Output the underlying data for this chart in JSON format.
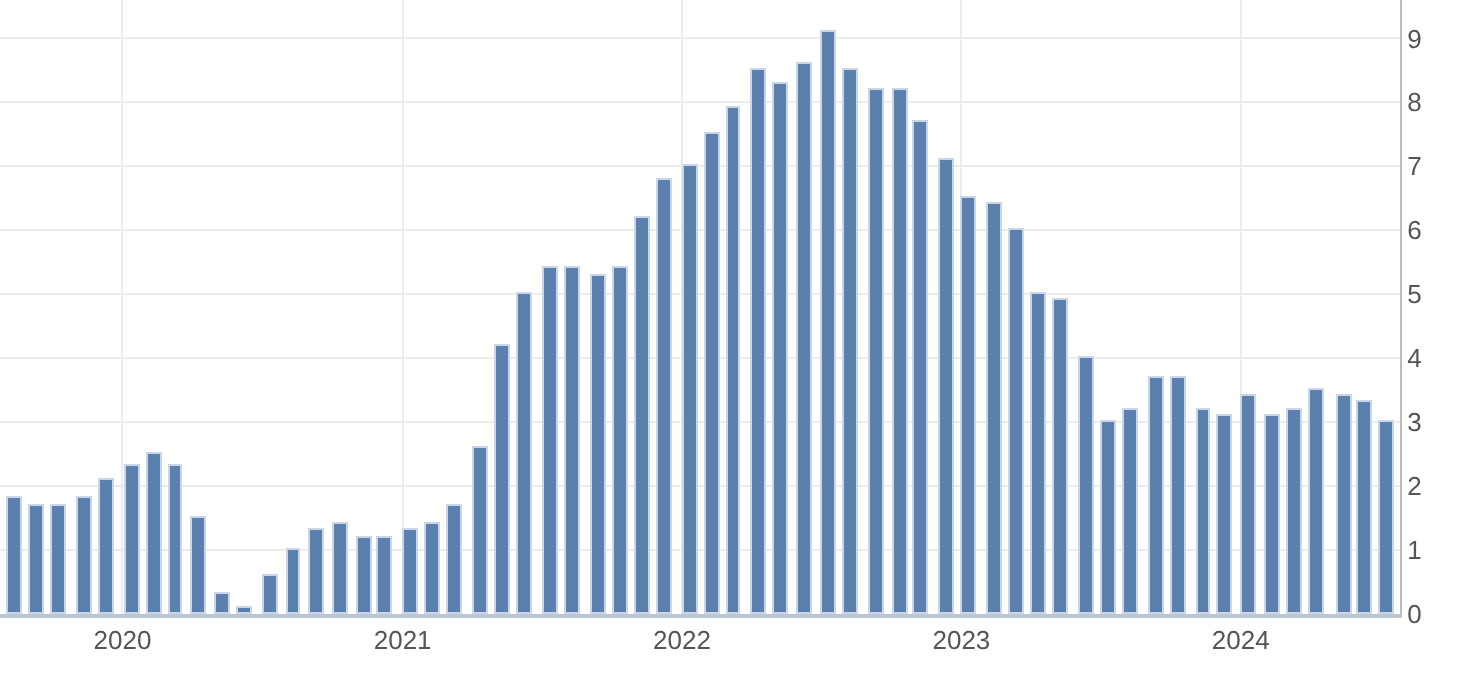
{
  "chart_data": {
    "type": "bar",
    "x": [
      "2019-08-13",
      "2019-09-12",
      "2019-10-10",
      "2019-11-13",
      "2019-12-11",
      "2020-01-14",
      "2020-02-13",
      "2020-03-11",
      "2020-04-10",
      "2020-05-12",
      "2020-06-10",
      "2020-07-14",
      "2020-08-12",
      "2020-09-11",
      "2020-10-13",
      "2020-11-12",
      "2020-12-10",
      "2021-01-13",
      "2021-02-10",
      "2021-03-10",
      "2021-04-13",
      "2021-05-12",
      "2021-06-10",
      "2021-07-13",
      "2021-08-11",
      "2021-09-14",
      "2021-10-13",
      "2021-11-10",
      "2021-12-10",
      "2022-01-12",
      "2022-02-10",
      "2022-03-10",
      "2022-04-12",
      "2022-05-11",
      "2022-06-10",
      "2022-07-13",
      "2022-08-10",
      "2022-09-13",
      "2022-10-13",
      "2022-11-10",
      "2022-12-13",
      "2023-01-12",
      "2023-02-14",
      "2023-03-14",
      "2023-04-12",
      "2023-05-10",
      "2023-06-13",
      "2023-07-12",
      "2023-08-10",
      "2023-09-13",
      "2023-10-12",
      "2023-11-14",
      "2023-12-12",
      "2024-01-11",
      "2024-02-13",
      "2024-03-12",
      "2024-04-10",
      "2024-05-15",
      "2024-06-12",
      "2024-07-11"
    ],
    "values": [
      1.8,
      1.7,
      1.7,
      1.8,
      2.1,
      2.3,
      2.5,
      2.3,
      1.5,
      0.3,
      0.1,
      0.6,
      1.0,
      1.3,
      1.4,
      1.2,
      1.2,
      1.3,
      1.4,
      1.7,
      2.6,
      4.2,
      5.0,
      5.4,
      5.4,
      5.3,
      5.4,
      6.2,
      6.8,
      7.0,
      7.5,
      7.9,
      8.5,
      8.3,
      8.6,
      9.1,
      8.5,
      8.2,
      8.2,
      7.7,
      7.1,
      6.5,
      6.4,
      6.0,
      5.0,
      4.9,
      4.0,
      3.0,
      3.2,
      3.7,
      3.7,
      3.2,
      3.1,
      3.4,
      3.1,
      3.2,
      3.5,
      3.4,
      3.3,
      3.0
    ],
    "color": "#5b80ad",
    "xlim": [
      "2019-07-25",
      "2024-07-27"
    ],
    "xticks": [
      {
        "value": "2020-01-01",
        "label": "2020"
      },
      {
        "value": "2021-01-01",
        "label": "2021"
      },
      {
        "value": "2022-01-01",
        "label": "2022"
      },
      {
        "value": "2023-01-01",
        "label": "2023"
      },
      {
        "value": "2024-01-01",
        "label": "2024"
      }
    ],
    "ylim": [
      0,
      9.6
    ],
    "yticks": [
      0,
      1,
      2,
      3,
      4,
      5,
      6,
      7,
      8,
      9
    ],
    "grid": true,
    "legend": false
  }
}
